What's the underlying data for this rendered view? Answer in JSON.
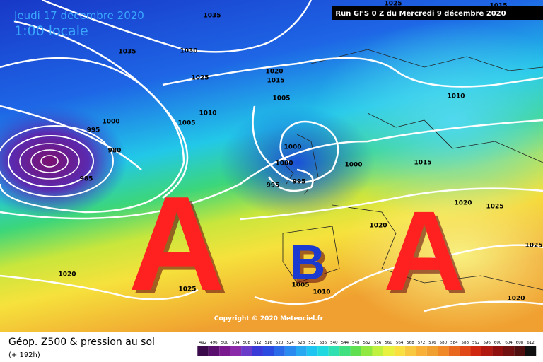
{
  "header": {
    "date": "Jeudi 17 décembre 2020",
    "time": "1:00 locale",
    "run": "Run GFS 0 Z du Mercredi 9 décembre 2020"
  },
  "isobars": [
    1035,
    1035,
    1030,
    1025,
    1020,
    1015,
    1005,
    1010,
    1005,
    1000,
    995,
    980,
    985,
    1000,
    1000,
    995,
    995,
    1000,
    1010,
    1015,
    1020,
    1025,
    1020,
    1025,
    1020,
    1025,
    1005,
    1010,
    1020,
    1025,
    1015
  ],
  "systems": [
    "A",
    "B",
    "A"
  ],
  "copyright": "Copyright © 2020 Meteociel.fr",
  "legend": {
    "title": "Géop. Z500 & pression au sol",
    "subtitle": "(+ 192h)",
    "scale": [
      492,
      496,
      500,
      504,
      508,
      512,
      516,
      520,
      524,
      528,
      532,
      536,
      540,
      544,
      548,
      552,
      556,
      560,
      564,
      568,
      572,
      576,
      580,
      584,
      588,
      592,
      596,
      600,
      604,
      608,
      612
    ],
    "colors": [
      "#3a0a4a",
      "#5a0f6e",
      "#7a1a8e",
      "#8a2aa8",
      "#6a3ac8",
      "#3a3ad8",
      "#2a4ae0",
      "#2a6ae8",
      "#2a8af0",
      "#28a8f0",
      "#20c4f0",
      "#20d8e0",
      "#30e0b0",
      "#40e080",
      "#60e050",
      "#90e840",
      "#c0f040",
      "#e8f040",
      "#f8e040",
      "#f8c840",
      "#f8b038",
      "#f0a030",
      "#f08828",
      "#e86820",
      "#e04818",
      "#d02810",
      "#b01810",
      "#901010",
      "#701010",
      "#501010",
      "#101010"
    ]
  }
}
